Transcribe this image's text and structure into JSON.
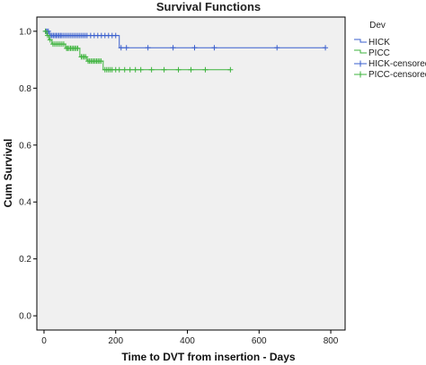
{
  "chart_data": {
    "type": "line",
    "subtype": "kaplan-meier step plot",
    "title": "Survival Functions",
    "xlabel": "Time to DVT from insertion - Days",
    "ylabel": "Cum Survival",
    "xlim": [
      -20,
      840
    ],
    "ylim": [
      -0.05,
      1.05
    ],
    "xticks": [
      0,
      200,
      400,
      600,
      800
    ],
    "yticks": [
      0.0,
      0.2,
      0.4,
      0.6,
      0.8,
      1.0
    ],
    "xtick_labels": [
      "0",
      "200",
      "400",
      "600",
      "800"
    ],
    "ytick_labels": [
      "0.0",
      "0.2",
      "0.4",
      "0.6",
      "0.8",
      "1.0"
    ],
    "grid": false,
    "plot_background": "#f0f0f0",
    "legend": {
      "title": "Dev",
      "position": "right",
      "entries": [
        {
          "label": "HICK",
          "kind": "line",
          "color": "#3a5fcd"
        },
        {
          "label": "PICC",
          "kind": "line",
          "color": "#3cb33c"
        },
        {
          "label": "HICK-censored",
          "kind": "censor",
          "color": "#3a5fcd"
        },
        {
          "label": "PICC-censored",
          "kind": "censor",
          "color": "#3cb33c"
        }
      ]
    },
    "series": [
      {
        "name": "HICK",
        "color": "#3a5fcd",
        "steps": [
          [
            0,
            1.0
          ],
          [
            15,
            0.985
          ],
          [
            210,
            0.942
          ],
          [
            785,
            0.942
          ]
        ],
        "censored": [
          [
            5,
            1.0
          ],
          [
            8,
            1.0
          ],
          [
            12,
            1.0
          ],
          [
            18,
            0.985
          ],
          [
            22,
            0.985
          ],
          [
            26,
            0.985
          ],
          [
            30,
            0.985
          ],
          [
            34,
            0.985
          ],
          [
            38,
            0.985
          ],
          [
            42,
            0.985
          ],
          [
            46,
            0.985
          ],
          [
            50,
            0.985
          ],
          [
            55,
            0.985
          ],
          [
            60,
            0.985
          ],
          [
            65,
            0.985
          ],
          [
            70,
            0.985
          ],
          [
            75,
            0.985
          ],
          [
            80,
            0.985
          ],
          [
            85,
            0.985
          ],
          [
            90,
            0.985
          ],
          [
            95,
            0.985
          ],
          [
            100,
            0.985
          ],
          [
            105,
            0.985
          ],
          [
            110,
            0.985
          ],
          [
            115,
            0.985
          ],
          [
            120,
            0.985
          ],
          [
            130,
            0.985
          ],
          [
            140,
            0.985
          ],
          [
            150,
            0.985
          ],
          [
            160,
            0.985
          ],
          [
            170,
            0.985
          ],
          [
            180,
            0.985
          ],
          [
            190,
            0.985
          ],
          [
            200,
            0.985
          ],
          [
            215,
            0.942
          ],
          [
            230,
            0.942
          ],
          [
            290,
            0.942
          ],
          [
            360,
            0.942
          ],
          [
            420,
            0.942
          ],
          [
            475,
            0.942
          ],
          [
            650,
            0.942
          ],
          [
            785,
            0.942
          ]
        ]
      },
      {
        "name": "PICC",
        "color": "#3cb33c",
        "steps": [
          [
            0,
            1.0
          ],
          [
            8,
            0.985
          ],
          [
            14,
            0.97
          ],
          [
            22,
            0.955
          ],
          [
            60,
            0.94
          ],
          [
            100,
            0.91
          ],
          [
            120,
            0.895
          ],
          [
            165,
            0.865
          ],
          [
            520,
            0.865
          ]
        ],
        "censored": [
          [
            4,
            1.0
          ],
          [
            10,
            0.985
          ],
          [
            17,
            0.97
          ],
          [
            25,
            0.955
          ],
          [
            30,
            0.955
          ],
          [
            35,
            0.955
          ],
          [
            40,
            0.955
          ],
          [
            45,
            0.955
          ],
          [
            50,
            0.955
          ],
          [
            55,
            0.955
          ],
          [
            63,
            0.94
          ],
          [
            66,
            0.94
          ],
          [
            70,
            0.94
          ],
          [
            74,
            0.94
          ],
          [
            78,
            0.94
          ],
          [
            82,
            0.94
          ],
          [
            86,
            0.94
          ],
          [
            90,
            0.94
          ],
          [
            94,
            0.94
          ],
          [
            104,
            0.91
          ],
          [
            108,
            0.91
          ],
          [
            112,
            0.91
          ],
          [
            116,
            0.91
          ],
          [
            123,
            0.895
          ],
          [
            127,
            0.895
          ],
          [
            131,
            0.895
          ],
          [
            135,
            0.895
          ],
          [
            139,
            0.895
          ],
          [
            143,
            0.895
          ],
          [
            147,
            0.895
          ],
          [
            151,
            0.895
          ],
          [
            155,
            0.895
          ],
          [
            159,
            0.895
          ],
          [
            170,
            0.865
          ],
          [
            175,
            0.865
          ],
          [
            180,
            0.865
          ],
          [
            185,
            0.865
          ],
          [
            190,
            0.865
          ],
          [
            200,
            0.865
          ],
          [
            210,
            0.865
          ],
          [
            225,
            0.865
          ],
          [
            240,
            0.865
          ],
          [
            255,
            0.865
          ],
          [
            270,
            0.865
          ],
          [
            300,
            0.865
          ],
          [
            335,
            0.865
          ],
          [
            375,
            0.865
          ],
          [
            410,
            0.865
          ],
          [
            450,
            0.865
          ],
          [
            520,
            0.865
          ]
        ]
      }
    ]
  }
}
